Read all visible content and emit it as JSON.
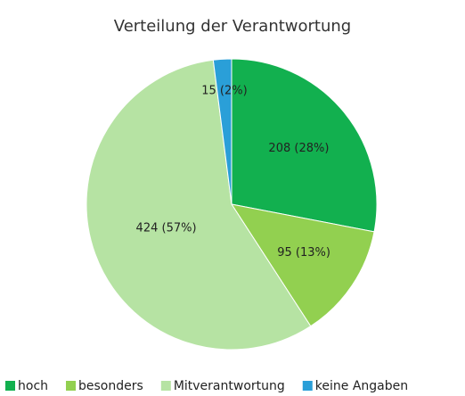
{
  "chart_data": {
    "type": "pie",
    "title": "Verteilung der Verantwortung",
    "categories": [
      "hoch",
      "besonders",
      "Mitverantwortung",
      "keine Angaben"
    ],
    "values": [
      208,
      95,
      424,
      15
    ],
    "value_labels": [
      "208 (28%)",
      "95 (13%)",
      "424 (57%)",
      "15 (2%)"
    ],
    "colors": [
      "#12b04f",
      "#92d050",
      "#b6e3a3",
      "#2a9fd8"
    ],
    "legend": "bottom"
  }
}
